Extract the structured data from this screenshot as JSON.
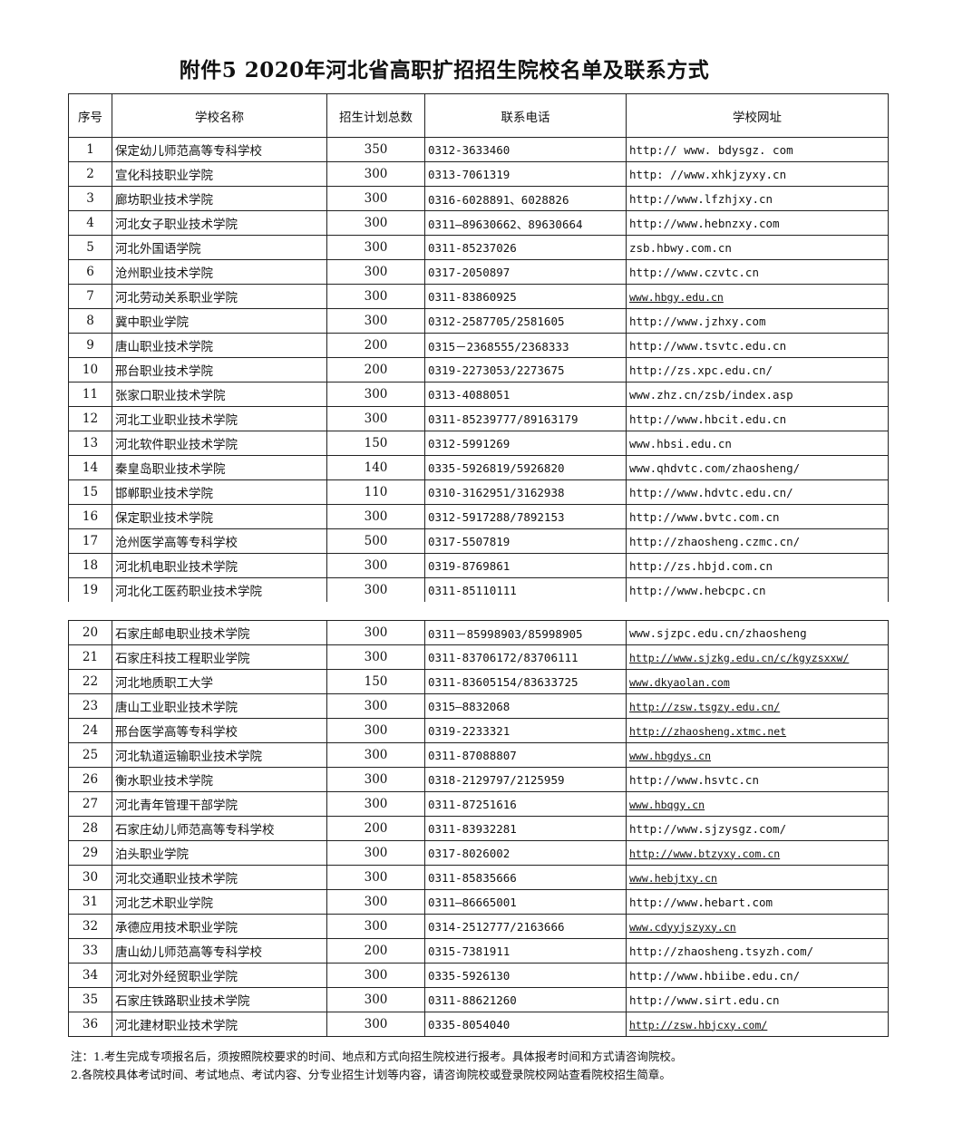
{
  "title": "附件5 2020年河北省高职扩招招生院校名单及联系方式",
  "headers": [
    "序号",
    "学校名称",
    "招生计划总数",
    "联系电话",
    "学校网址"
  ],
  "rows": [
    {
      "no": "1",
      "name": "保定幼儿师范高等专科学校",
      "plan": "350",
      "phone": "0312-3633460",
      "url": "http:// www. bdysgz. com",
      "link": false
    },
    {
      "no": "2",
      "name": "宣化科技职业学院",
      "plan": "300",
      "phone": "0313-7061319",
      "url": "http: //www.xhkjzyxy.cn",
      "link": false
    },
    {
      "no": "3",
      "name": "廊坊职业技术学院",
      "plan": "300",
      "phone": "0316-6028891、6028826",
      "url": "http://www.lfzhjxy.cn",
      "link": false
    },
    {
      "no": "4",
      "name": "河北女子职业技术学院",
      "plan": "300",
      "phone": "0311—89630662、89630664",
      "url": "http://www.hebnzxy.com",
      "link": false
    },
    {
      "no": "5",
      "name": "河北外国语学院",
      "plan": "300",
      "phone": "0311-85237026",
      "url": "zsb.hbwy.com.cn",
      "link": false
    },
    {
      "no": "6",
      "name": "沧州职业技术学院",
      "plan": "300",
      "phone": "0317-2050897",
      "url": "http://www.czvtc.cn",
      "link": false
    },
    {
      "no": "7",
      "name": "河北劳动关系职业学院",
      "plan": "300",
      "phone": "0311-83860925",
      "url": "www.hbgy.edu.cn",
      "link": true
    },
    {
      "no": "8",
      "name": "冀中职业学院",
      "plan": "300",
      "phone": "0312-2587705/2581605",
      "url": "http://www.jzhxy.com",
      "link": false
    },
    {
      "no": "9",
      "name": "唐山职业技术学院",
      "plan": "200",
      "phone": "0315－2368555/2368333",
      "url": "http://www.tsvtc.edu.cn",
      "link": false
    },
    {
      "no": "10",
      "name": "邢台职业技术学院",
      "plan": "200",
      "phone": "0319-2273053/2273675",
      "url": "http://zs.xpc.edu.cn/",
      "link": false
    },
    {
      "no": "11",
      "name": "张家口职业技术学院",
      "plan": "300",
      "phone": "0313-4088051",
      "url": "www.zhz.cn/zsb/index.asp",
      "link": false
    },
    {
      "no": "12",
      "name": "河北工业职业技术学院",
      "plan": "300",
      "phone": "0311-85239777/89163179",
      "url": "http://www.hbcit.edu.cn",
      "link": false
    },
    {
      "no": "13",
      "name": "河北软件职业技术学院",
      "plan": "150",
      "phone": "0312-5991269",
      "url": "www.hbsi.edu.cn",
      "link": false
    },
    {
      "no": "14",
      "name": "秦皇岛职业技术学院",
      "plan": "140",
      "phone": "0335-5926819/5926820",
      "url": "www.qhdvtc.com/zhaosheng/",
      "link": false
    },
    {
      "no": "15",
      "name": "邯郸职业技术学院",
      "plan": "110",
      "phone": "0310-3162951/3162938",
      "url": "http://www.hdvtc.edu.cn/",
      "link": false
    },
    {
      "no": "16",
      "name": "保定职业技术学院",
      "plan": "300",
      "phone": "0312-5917288/7892153",
      "url": "http://www.bvtc.com.cn",
      "link": false
    },
    {
      "no": "17",
      "name": "沧州医学高等专科学校",
      "plan": "500",
      "phone": "0317-5507819",
      "url": "http://zhaosheng.czmc.cn/",
      "link": false
    },
    {
      "no": "18",
      "name": "河北机电职业技术学院",
      "plan": "300",
      "phone": "0319-8769861",
      "url": "http://zs.hbjd.com.cn",
      "link": false
    },
    {
      "no": "19",
      "name": "河北化工医药职业技术学院",
      "plan": "300",
      "phone": "0311-85110111",
      "url": "http://www.hebcpc.cn",
      "link": false
    },
    {
      "no": "20",
      "name": "石家庄邮电职业技术学院",
      "plan": "300",
      "phone": "0311－85998903/85998905",
      "url": "www.sjzpc.edu.cn/zhaosheng",
      "link": false
    },
    {
      "no": "21",
      "name": "石家庄科技工程职业学院",
      "plan": "300",
      "phone": "0311-83706172/83706111",
      "url": "http://www.sjzkg.edu.cn/c/kgyzsxxw/",
      "link": true
    },
    {
      "no": "22",
      "name": "河北地质职工大学",
      "plan": "150",
      "phone": "0311-83605154/83633725",
      "url": "www.dkyaolan.com",
      "link": true
    },
    {
      "no": "23",
      "name": "唐山工业职业技术学院",
      "plan": "300",
      "phone": "0315—8832068",
      "url": "http://zsw.tsgzy.edu.cn/",
      "link": true
    },
    {
      "no": "24",
      "name": "邢台医学高等专科学校",
      "plan": "300",
      "phone": "0319-2233321",
      "url": "http://zhaosheng.xtmc.net",
      "link": true
    },
    {
      "no": "25",
      "name": "河北轨道运输职业技术学院",
      "plan": "300",
      "phone": "0311-87088807",
      "url": "www.hbgdys.cn",
      "link": true
    },
    {
      "no": "26",
      "name": "衡水职业技术学院",
      "plan": "300",
      "phone": "0318-2129797/2125959",
      "url": "http://www.hsvtc.cn",
      "link": false
    },
    {
      "no": "27",
      "name": "河北青年管理干部学院",
      "plan": "300",
      "phone": "0311-87251616",
      "url": "www.hbqgy.cn",
      "link": true
    },
    {
      "no": "28",
      "name": "石家庄幼儿师范高等专科学校",
      "plan": "200",
      "phone": "0311-83932281",
      "url": "http://www.sjzysgz.com/",
      "link": false
    },
    {
      "no": "29",
      "name": "泊头职业学院",
      "plan": "300",
      "phone": "0317-8026002",
      "url": "http://www.btzyxy.com.cn",
      "link": true
    },
    {
      "no": "30",
      "name": "河北交通职业技术学院",
      "plan": "300",
      "phone": "0311-85835666",
      "url": "www.hebjtxy.cn",
      "link": true
    },
    {
      "no": "31",
      "name": "河北艺术职业学院",
      "plan": "300",
      "phone": "0311—86665001",
      "url": "http://www.hebart.com",
      "link": false
    },
    {
      "no": "32",
      "name": "承德应用技术职业学院",
      "plan": "300",
      "phone": "0314-2512777/2163666",
      "url": "www.cdyyjszyxy.cn",
      "link": true
    },
    {
      "no": "33",
      "name": "唐山幼儿师范高等专科学校",
      "plan": "200",
      "phone": "0315-7381911",
      "url": "http://zhaosheng.tsyzh.com/",
      "link": false
    },
    {
      "no": "34",
      "name": "河北对外经贸职业学院",
      "plan": "300",
      "phone": "0335-5926130",
      "url": "http://www.hbiibe.edu.cn/",
      "link": false
    },
    {
      "no": "35",
      "name": "石家庄铁路职业技术学院",
      "plan": "300",
      "phone": "0311-88621260",
      "url": "http://www.sirt.edu.cn",
      "link": false
    },
    {
      "no": "36",
      "name": "河北建材职业技术学院",
      "plan": "300",
      "phone": "0335-8054040",
      "url": "http://zsw.hbjcxy.com/",
      "link": true
    }
  ],
  "notes": [
    "注：1.考生完成专项报名后，须按照院校要求的时间、地点和方式向招生院校进行报考。具体报考时间和方式请咨询院校。",
    "2.各院校具体考试时间、考试地点、考试内容、分专业招生计划等内容，请咨询院校或登录院校网站查看院校招生简章。"
  ]
}
